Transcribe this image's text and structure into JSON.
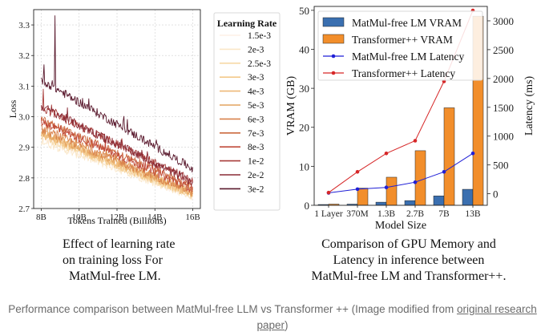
{
  "chart_data": [
    {
      "type": "line",
      "xlabel": "Tokens Trained (Billions)",
      "ylabel": "Loss",
      "xlim": [
        7.6,
        16.4
      ],
      "ylim": [
        2.7,
        3.35
      ],
      "xticks": [
        8,
        10,
        12,
        14,
        16
      ],
      "xtick_labels": [
        "8B",
        "10B",
        "12B",
        "14B",
        "16B"
      ],
      "yticks": [
        2.7,
        2.8,
        2.9,
        3.0,
        3.1,
        3.2,
        3.3
      ],
      "ytick_labels": [
        "2.7",
        "2.8",
        "2.9",
        "3.0",
        "3.1",
        "3.2",
        "3.3"
      ],
      "grid": true,
      "legend_title": "Learning Rate",
      "legend_position": "right-outside",
      "series": [
        {
          "name": "1.5e-3",
          "color": "#fdf0e6",
          "x": [
            8,
            16
          ],
          "y": [
            2.93,
            2.74
          ]
        },
        {
          "name": "2e-3",
          "color": "#fae7c8",
          "x": [
            8,
            16
          ],
          "y": [
            2.92,
            2.74
          ]
        },
        {
          "name": "2.5e-3",
          "color": "#f7d9a6",
          "x": [
            8,
            16
          ],
          "y": [
            2.935,
            2.745
          ]
        },
        {
          "name": "3e-3",
          "color": "#f3c98a",
          "x": [
            8,
            16
          ],
          "y": [
            2.94,
            2.745
          ]
        },
        {
          "name": "4e-3",
          "color": "#eeb877",
          "x": [
            8,
            16
          ],
          "y": [
            2.945,
            2.75
          ]
        },
        {
          "name": "5e-3",
          "color": "#e4a35f",
          "x": [
            8,
            16
          ],
          "y": [
            2.95,
            2.75
          ]
        },
        {
          "name": "6e-3",
          "color": "#d9824b",
          "x": [
            8,
            16
          ],
          "y": [
            2.96,
            2.755
          ]
        },
        {
          "name": "7e-3",
          "color": "#cc6a3f",
          "x": [
            8,
            16
          ],
          "y": [
            2.99,
            2.77
          ]
        },
        {
          "name": "8e-3",
          "color": "#c14b3b",
          "x": [
            8,
            16
          ],
          "y": [
            2.985,
            2.765
          ]
        },
        {
          "name": "1e-2",
          "color": "#a83c3a",
          "x": [
            8,
            16
          ],
          "y": [
            3.03,
            2.79
          ]
        },
        {
          "name": "2e-2",
          "color": "#8a2c36",
          "x": [
            8,
            16
          ],
          "y": [
            3.035,
            2.785
          ]
        },
        {
          "name": "3e-2",
          "color": "#5a1a2e",
          "x": [
            8,
            16
          ],
          "y": [
            3.12,
            2.83
          ]
        }
      ]
    },
    {
      "type": "bar",
      "xlabel": "Model Size",
      "ylabel": "VRAM (GB)",
      "y2label": "Latency (ms)",
      "categories": [
        "1 Layer",
        "370M",
        "1.3B",
        "2.7B",
        "7B",
        "13B"
      ],
      "ylim": [
        0,
        51
      ],
      "yticks": [
        0,
        10,
        20,
        30,
        40,
        50
      ],
      "y2lim": [
        -200,
        3250
      ],
      "y2ticks": [
        0,
        500,
        1000,
        1500,
        2000,
        2500,
        3000
      ],
      "legend_position": "top-left",
      "series": [
        {
          "name": "MatMul-free LM VRAM",
          "kind": "bar",
          "axis": "left",
          "color": "#3a6fb0",
          "values": [
            0.2,
            0.3,
            0.8,
            1.2,
            2.4,
            4.1
          ]
        },
        {
          "name": "Transformer++ VRAM",
          "kind": "bar",
          "axis": "left",
          "color": "#f28e2b",
          "values": [
            0.3,
            4.4,
            7.2,
            14.0,
            25.0,
            48.5
          ]
        },
        {
          "name": "MatMul-free LM Latency",
          "kind": "line",
          "axis": "right",
          "color": "#1f1fd6",
          "values": [
            15,
            80,
            110,
            200,
            380,
            700
          ]
        },
        {
          "name": "Transformer++ Latency",
          "kind": "line",
          "axis": "right",
          "color": "#d62728",
          "values": [
            20,
            380,
            700,
            920,
            1950,
            3180
          ]
        }
      ]
    }
  ],
  "captions": {
    "left": [
      "Effect of learning rate",
      "on training loss For",
      "MatMul-free LM."
    ],
    "right": [
      "Comparison of GPU Memory and",
      "Latency in inference between",
      "MatMul-free LM and Transformer++."
    ]
  },
  "footer": {
    "text_before": "Performance comparison between MatMul-free LLM vs Transformer ++ (Image modified from ",
    "link_text": "original research paper",
    "text_after": ")"
  }
}
